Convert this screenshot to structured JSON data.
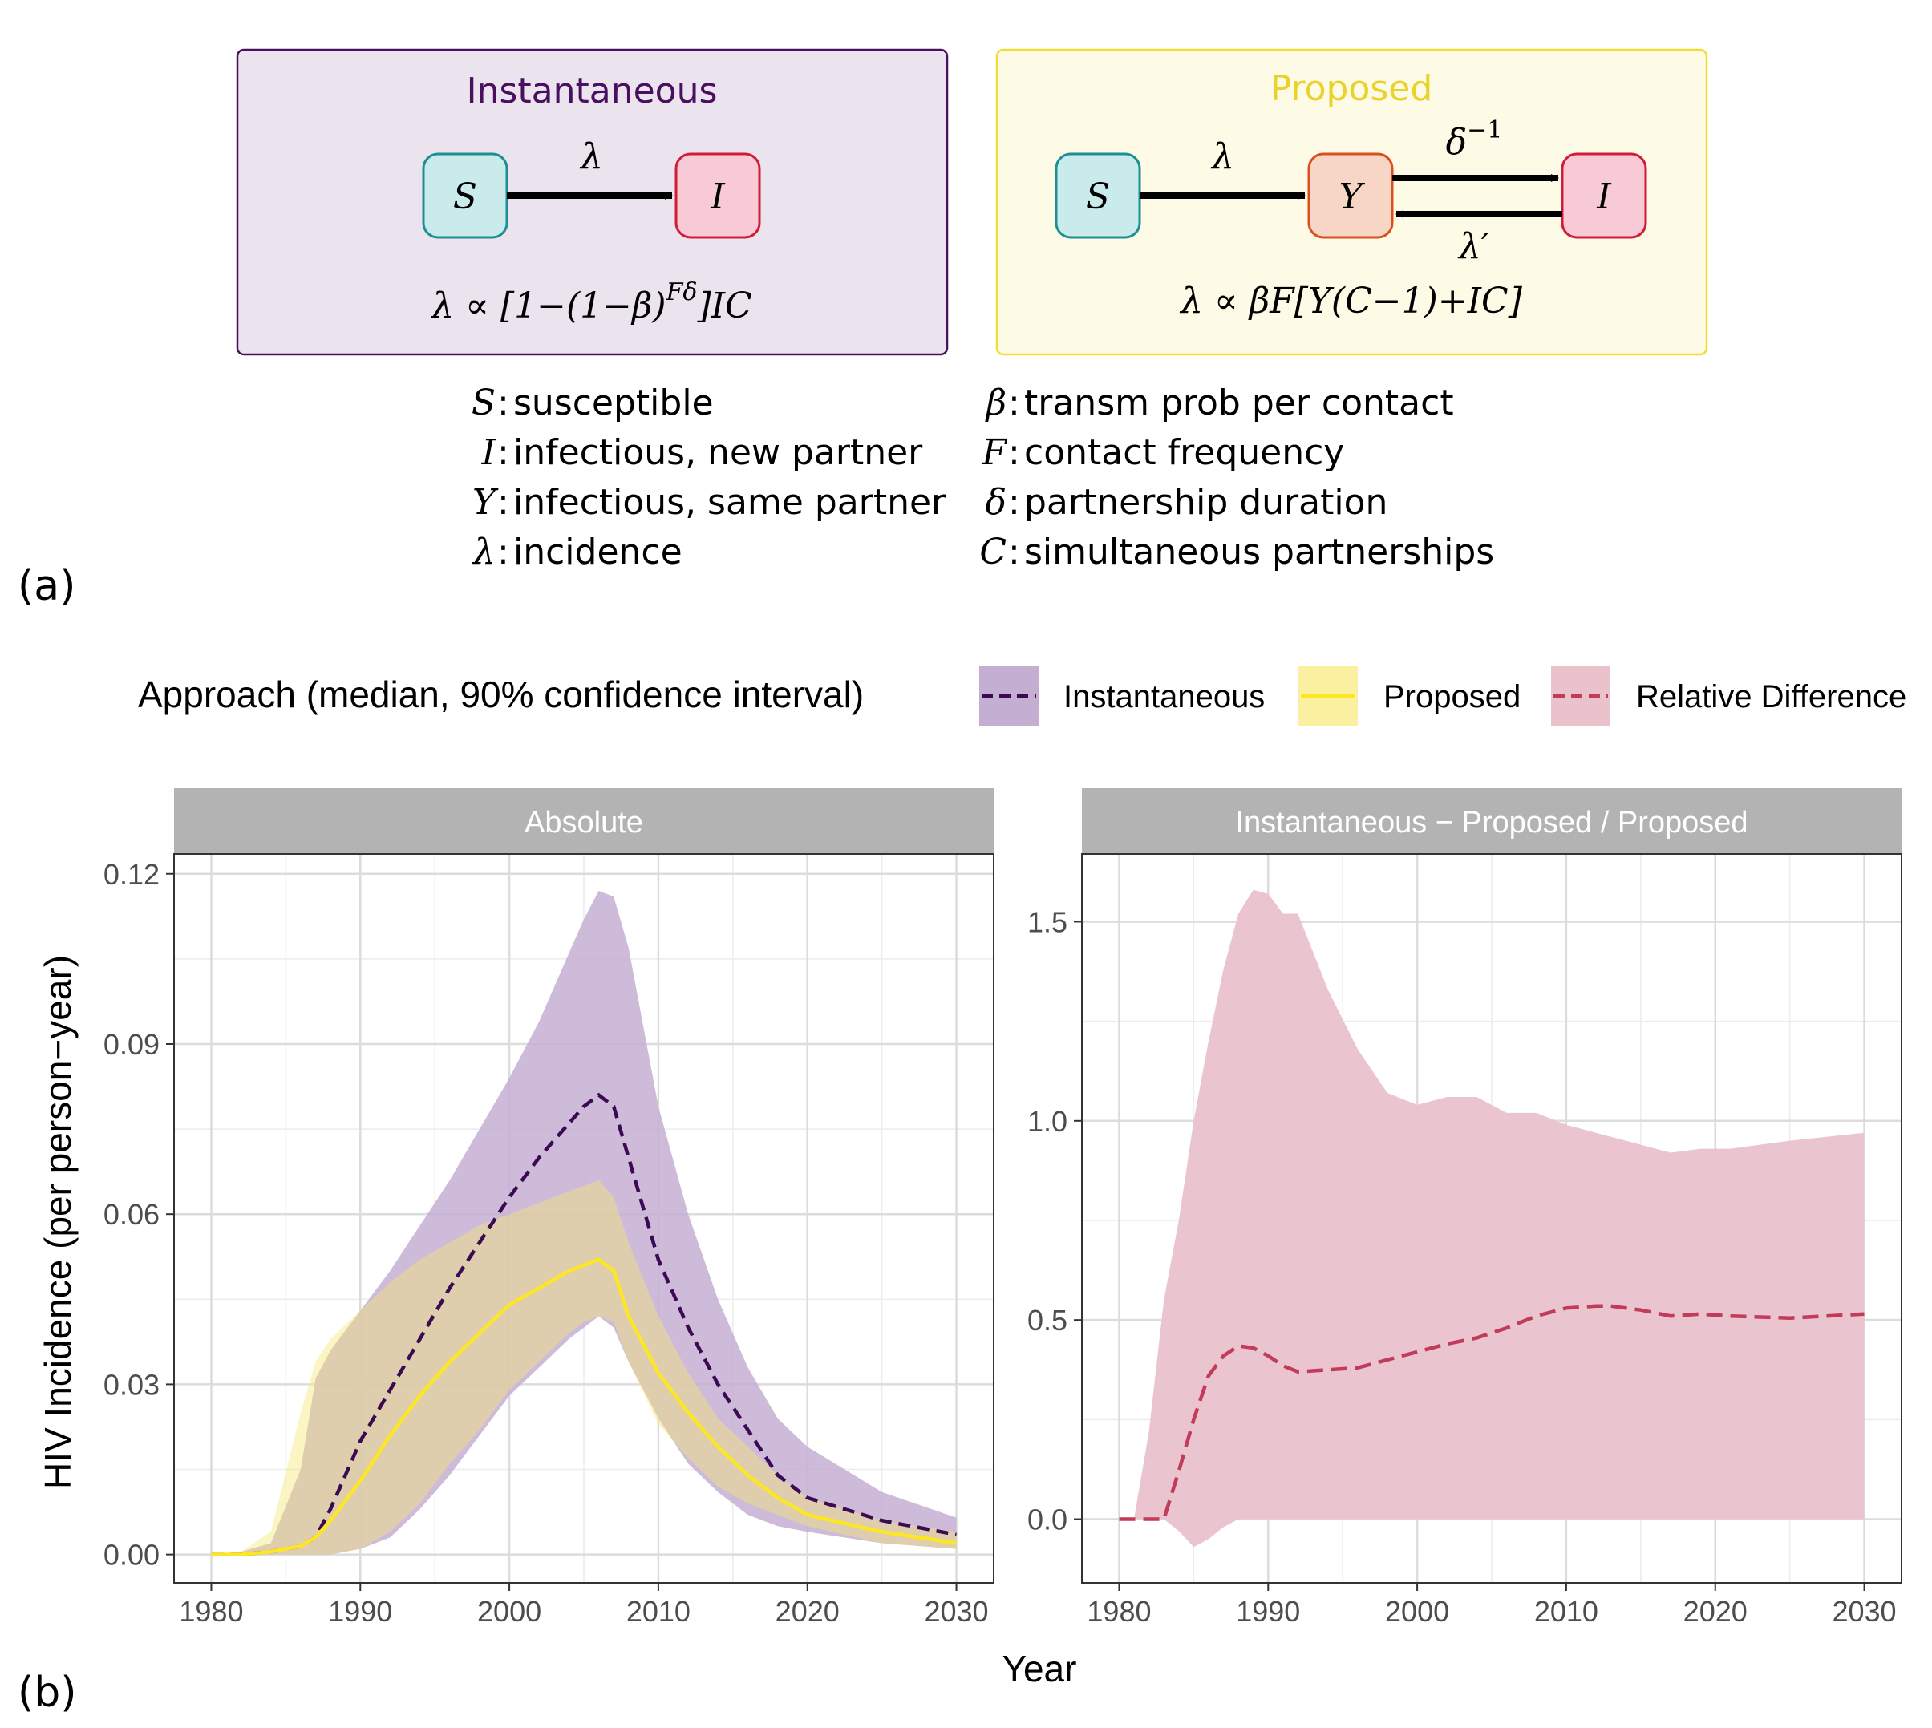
{
  "colors": {
    "instantaneous_fill": "#ebe4ee",
    "instantaneous_border": "#4a1060",
    "instantaneous_title": "#4a1060",
    "proposed_fill": "#fdfae6",
    "proposed_border": "#f1de34",
    "proposed_title": "#e9d22a",
    "node_s_fill": "#c9ebec",
    "node_s_border": "#1c8f93",
    "node_y_fill": "#f8d6c6",
    "node_y_border": "#d9501e",
    "node_i_fill": "#f7cad5",
    "node_i_border": "#d01c39",
    "inst_band": "#c4afd2",
    "inst_line": "#3b0a52",
    "prop_band": "#fbf0a0",
    "prop_line": "#fde725",
    "rel_band": "#e9c2cc",
    "rel_line": "#c23b58",
    "strip": "#b3b3b3",
    "grid": "#e0e0e0"
  },
  "panel_a": {
    "tag": "(a)",
    "instantaneous": {
      "title": "Instantaneous",
      "node_s": "S",
      "node_i": "I",
      "arrow_label": "λ",
      "formula": {
        "a": "λ ∝ [1−(1−β)",
        "sup": "Fδ",
        "b": "]IC"
      }
    },
    "proposed": {
      "title": "Proposed",
      "node_s": "S",
      "node_y": "Y",
      "node_i": "I",
      "arrow_sy": "λ",
      "arrow_yi": {
        "base": "δ",
        "sup": "−1"
      },
      "arrow_iy": "λ′",
      "formula": "λ ∝ βF[Y(C−1)+IC]"
    },
    "legend_left": [
      {
        "sym": "S",
        "desc": "susceptible"
      },
      {
        "sym": "I",
        "desc": "infectious, new partner"
      },
      {
        "sym": "Y",
        "desc": "infectious, same partner"
      },
      {
        "sym": "λ",
        "desc": "incidence"
      }
    ],
    "legend_right": [
      {
        "sym": "β",
        "desc": "transm prob per contact"
      },
      {
        "sym": "F",
        "desc": "contact frequency"
      },
      {
        "sym": "δ",
        "desc": "partnership duration"
      },
      {
        "sym": "C",
        "desc": "simultaneous partnerships"
      }
    ]
  },
  "panel_b": {
    "tag": "(b)",
    "legend": {
      "title": "Approach (median, 90% confidence interval)",
      "entries": [
        "Instantaneous",
        "Proposed",
        "Relative Difference"
      ]
    },
    "xlabel": "Year",
    "ylabel": "HIV Incidence (per person−year)"
  },
  "chart_data": [
    {
      "type": "area",
      "title": "Absolute",
      "xlabel": "Year",
      "ylabel": "HIV Incidence (per person−year)",
      "xlim": [
        1977.5,
        2032.5
      ],
      "ylim": [
        -0.005,
        0.1235
      ],
      "xticks": [
        1980,
        1990,
        2000,
        2010,
        2020,
        2030
      ],
      "yticks": [
        0.0,
        0.03,
        0.06,
        0.09,
        0.12
      ],
      "ytick_labels": [
        "0.00",
        "0.03",
        "0.06",
        "0.09",
        "0.12"
      ],
      "grid": true,
      "series": [
        {
          "name": "Instantaneous",
          "style": "dashed",
          "x": [
            1980,
            1982,
            1984,
            1986,
            1987,
            1988,
            1990,
            1992,
            1994,
            1996,
            1998,
            2000,
            2002,
            2004,
            2005,
            2006,
            2007,
            2008,
            2010,
            2012,
            2014,
            2016,
            2018,
            2020,
            2025,
            2030
          ],
          "median": [
            0,
            0,
            0.0005,
            0.0015,
            0.003,
            0.008,
            0.02,
            0.029,
            0.038,
            0.047,
            0.055,
            0.063,
            0.07,
            0.076,
            0.079,
            0.081,
            0.079,
            0.07,
            0.052,
            0.04,
            0.03,
            0.022,
            0.014,
            0.01,
            0.006,
            0.0035
          ],
          "lower": [
            0,
            0,
            0,
            0,
            0,
            0,
            0.001,
            0.003,
            0.008,
            0.014,
            0.021,
            0.028,
            0.033,
            0.038,
            0.04,
            0.042,
            0.04,
            0.034,
            0.024,
            0.016,
            0.011,
            0.007,
            0.005,
            0.004,
            0.002,
            0.001
          ],
          "upper": [
            0,
            0.0005,
            0.002,
            0.015,
            0.031,
            0.036,
            0.043,
            0.05,
            0.058,
            0.066,
            0.075,
            0.084,
            0.094,
            0.106,
            0.112,
            0.117,
            0.116,
            0.107,
            0.079,
            0.06,
            0.045,
            0.033,
            0.024,
            0.019,
            0.011,
            0.0065
          ]
        },
        {
          "name": "Proposed",
          "style": "solid",
          "x": [
            1980,
            1982,
            1984,
            1986,
            1987,
            1988,
            1990,
            1992,
            1994,
            1996,
            1998,
            2000,
            2002,
            2004,
            2005,
            2006,
            2007,
            2008,
            2010,
            2012,
            2014,
            2016,
            2018,
            2020,
            2025,
            2030
          ],
          "median": [
            0,
            0,
            0.0005,
            0.0015,
            0.003,
            0.006,
            0.013,
            0.021,
            0.028,
            0.034,
            0.039,
            0.044,
            0.047,
            0.05,
            0.051,
            0.052,
            0.05,
            0.042,
            0.032,
            0.025,
            0.019,
            0.014,
            0.01,
            0.007,
            0.004,
            0.002
          ],
          "lower": [
            0,
            0,
            0,
            0,
            0,
            0,
            0.001,
            0.004,
            0.009,
            0.016,
            0.022,
            0.029,
            0.034,
            0.039,
            0.041,
            0.042,
            0.041,
            0.034,
            0.023,
            0.017,
            0.012,
            0.009,
            0.007,
            0.005,
            0.002,
            0.001
          ],
          "upper": [
            0,
            0.0005,
            0.004,
            0.025,
            0.034,
            0.038,
            0.043,
            0.048,
            0.052,
            0.055,
            0.058,
            0.06,
            0.062,
            0.064,
            0.065,
            0.066,
            0.063,
            0.055,
            0.042,
            0.032,
            0.024,
            0.019,
            0.014,
            0.01,
            0.006,
            0.004
          ]
        }
      ]
    },
    {
      "type": "area",
      "title": "Instantaneous − Proposed / Proposed",
      "xlabel": "Year",
      "xlim": [
        1977.5,
        2032.5
      ],
      "ylim": [
        -0.16,
        1.67
      ],
      "xticks": [
        1980,
        1990,
        2000,
        2010,
        2020,
        2030
      ],
      "yticks": [
        0.0,
        0.5,
        1.0,
        1.5
      ],
      "ytick_labels": [
        "0.0",
        "0.5",
        "1.0",
        "1.5"
      ],
      "grid": true,
      "series": [
        {
          "name": "Relative Difference",
          "style": "dashed",
          "x": [
            1980,
            1981,
            1982,
            1983,
            1984,
            1985,
            1986,
            1987,
            1988,
            1989,
            1990,
            1991,
            1992,
            1994,
            1996,
            1998,
            2000,
            2002,
            2004,
            2006,
            2008,
            2010,
            2012,
            2013,
            2015,
            2017,
            2019,
            2021,
            2025,
            2030
          ],
          "median": [
            0,
            0,
            0,
            0,
            0.12,
            0.25,
            0.36,
            0.41,
            0.435,
            0.43,
            0.41,
            0.385,
            0.37,
            0.375,
            0.38,
            0.4,
            0.42,
            0.44,
            0.455,
            0.48,
            0.51,
            0.53,
            0.535,
            0.535,
            0.525,
            0.51,
            0.515,
            0.51,
            0.505,
            0.515
          ],
          "lower": [
            0,
            0,
            0,
            0,
            -0.03,
            -0.07,
            -0.05,
            -0.02,
            0,
            0,
            0,
            0,
            0,
            0,
            0,
            0,
            0,
            0,
            0,
            0,
            0,
            0,
            0,
            0,
            0,
            0,
            0,
            0,
            0,
            0
          ],
          "upper": [
            0,
            0,
            0.22,
            0.55,
            0.75,
            1.0,
            1.2,
            1.38,
            1.52,
            1.58,
            1.57,
            1.52,
            1.52,
            1.33,
            1.18,
            1.07,
            1.04,
            1.06,
            1.06,
            1.02,
            1.02,
            0.99,
            0.97,
            0.96,
            0.94,
            0.92,
            0.93,
            0.93,
            0.95,
            0.97
          ]
        }
      ]
    }
  ]
}
